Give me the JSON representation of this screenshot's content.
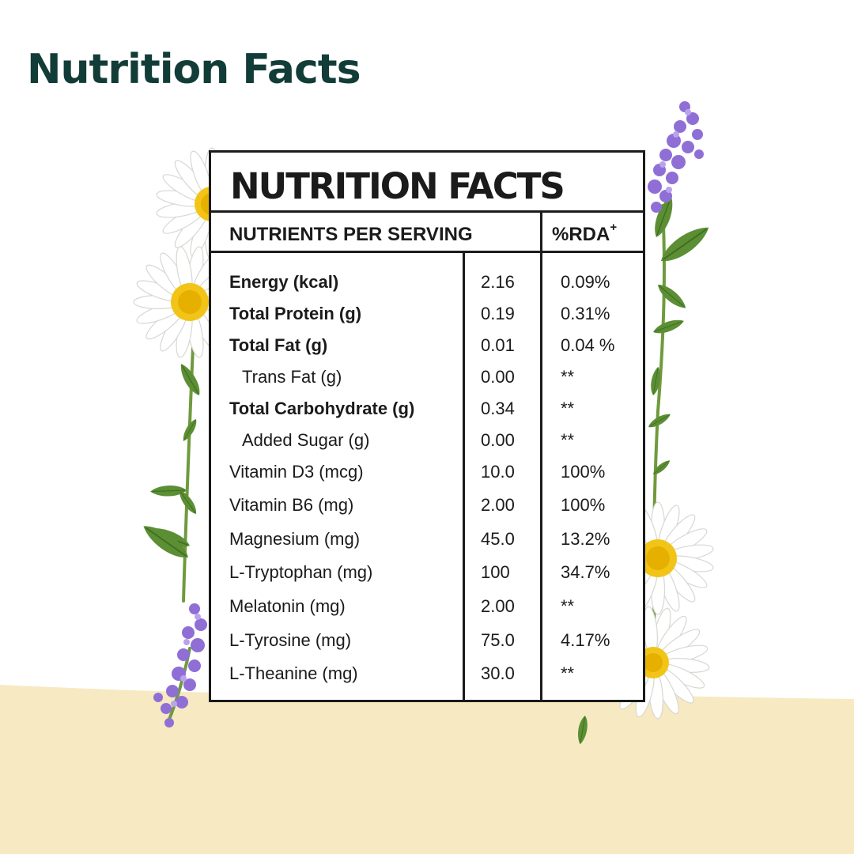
{
  "page": {
    "heading": "Nutrition Facts",
    "colors": {
      "heading": "#123c38",
      "cream": "#f7e9c1",
      "panel_border": "#1b1b1b"
    },
    "decorations": [
      "chamomile-flower-icon",
      "lavender-sprig-icon",
      "green-leaf-icon"
    ]
  },
  "panel": {
    "title": "NUTRITION FACTS",
    "header_nutrients": "NUTRIENTS PER SERVING",
    "header_rda": "%RDA",
    "header_rda_mark": "+",
    "rows": [
      {
        "name": "Energy (kcal)",
        "value": "2.16",
        "rda": "0.09%"
      },
      {
        "name": "Total Protein (g)",
        "value": "0.19",
        "rda": "0.31%"
      },
      {
        "name": "Total Fat (g)",
        "value": "0.01",
        "rda": "0.04 %"
      },
      {
        "name": "Trans Fat (g)",
        "value": "0.00",
        "rda": "**"
      },
      {
        "name": "Total Carbohydrate (g)",
        "value": "0.34",
        "rda": "**"
      },
      {
        "name": "Added Sugar (g)",
        "value": "0.00",
        "rda": "**"
      },
      {
        "name": "Vitamin D3 (mcg)",
        "value": "10.0",
        "rda": "100%"
      },
      {
        "name": "Vitamin B6 (mg)",
        "value": "2.00",
        "rda": "100%"
      },
      {
        "name": "Magnesium (mg)",
        "value": "45.0",
        "rda": "13.2%"
      },
      {
        "name": "L-Tryptophan (mg)",
        "value": "100",
        "rda": "34.7%"
      },
      {
        "name": "Melatonin (mg)",
        "value": "2.00",
        "rda": "**"
      },
      {
        "name": "L-Tyrosine (mg)",
        "value": "75.0",
        "rda": "4.17%"
      },
      {
        "name": "L-Theanine (mg)",
        "value": "30.0",
        "rda": "**"
      }
    ]
  }
}
